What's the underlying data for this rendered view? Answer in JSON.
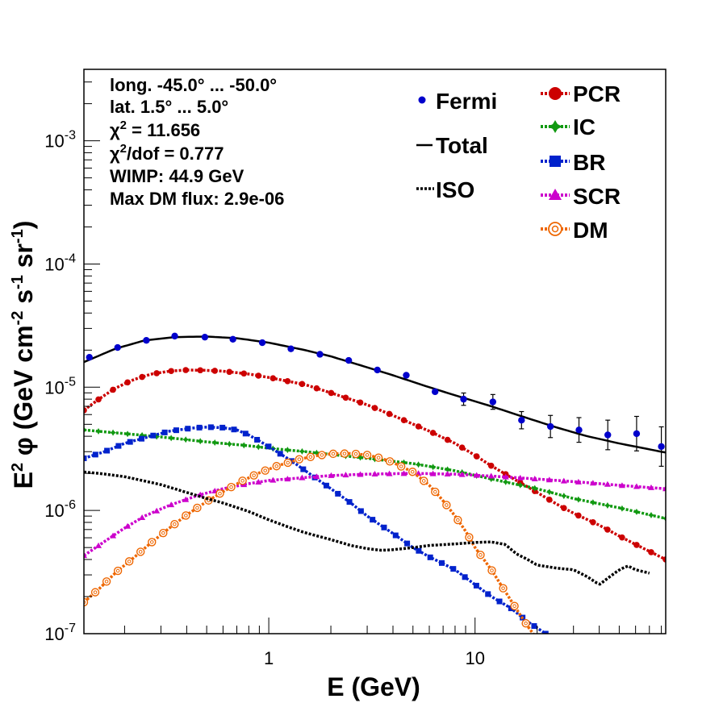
{
  "info": {
    "lines": [
      "long. -45.0° ... -50.0°",
      "lat. 1.5° ... 5.0°"
    ],
    "chi2_label": "χ",
    "chi2_sup": "2",
    "chi2_value": " = 11.656",
    "chi2dof_label": "χ",
    "chi2dof_sup": "2",
    "chi2dof_value": "/dof = 0.777",
    "wimp": "WIMP: 44.9 GeV",
    "maxdm": "Max DM flux: 2.9e-06"
  },
  "legend_left": [
    {
      "key": "fermi",
      "label": "Fermi"
    },
    {
      "key": "total",
      "label": "Total"
    },
    {
      "key": "iso",
      "label": "ISO"
    }
  ],
  "legend_right": [
    {
      "key": "pcr",
      "label": "PCR"
    },
    {
      "key": "ic",
      "label": "IC"
    },
    {
      "key": "br",
      "label": "BR"
    },
    {
      "key": "scr",
      "label": "SCR"
    },
    {
      "key": "dm",
      "label": "DM"
    }
  ],
  "colors": {
    "fermi": "#0000cc",
    "total": "#000000",
    "iso": "#000000",
    "pcr": "#cc0000",
    "ic": "#119911",
    "br": "#0022cc",
    "scr": "#cc00cc",
    "dm": "#ee6600"
  },
  "x_axis": {
    "label": "E (GeV)",
    "ticks": [
      {
        "value": 1,
        "label": "1"
      },
      {
        "value": 10,
        "label": "10"
      }
    ]
  },
  "y_axis": {
    "label_main": "E",
    "label_sup": "2",
    "label_phi": " φ (GeV cm",
    "label_sup2": "-2",
    "label_s": " s",
    "label_sup3": "-1",
    "label_sr": " sr",
    "label_sup4": "-1",
    "label_end": ")",
    "ticks": [
      {
        "value": 1e-07,
        "base": "10",
        "exp": "-7"
      },
      {
        "value": 1e-06,
        "base": "10",
        "exp": "-6"
      },
      {
        "value": 1e-05,
        "base": "10",
        "exp": "-5"
      },
      {
        "value": 0.0001,
        "base": "10",
        "exp": "-4"
      },
      {
        "value": 0.001,
        "base": "10",
        "exp": "-3"
      }
    ]
  },
  "chart_data": {
    "type": "scatter",
    "x_scale": "log",
    "y_scale": "log",
    "xlim": [
      0.127,
      84
    ],
    "ylim": [
      1e-07,
      0.0038
    ],
    "xlabel": "E (GeV)",
    "ylabel": "E² φ (GeV cm⁻² s⁻¹ sr⁻¹)",
    "fermi_points": [
      {
        "x": 0.135,
        "y": 1.75e-05,
        "err": 0
      },
      {
        "x": 0.185,
        "y": 2.1e-05,
        "err": 0
      },
      {
        "x": 0.255,
        "y": 2.4e-05,
        "err": 0
      },
      {
        "x": 0.35,
        "y": 2.6e-05,
        "err": 0
      },
      {
        "x": 0.49,
        "y": 2.55e-05,
        "err": 0
      },
      {
        "x": 0.67,
        "y": 2.45e-05,
        "err": 0
      },
      {
        "x": 0.93,
        "y": 2.3e-05,
        "err": 0
      },
      {
        "x": 1.28,
        "y": 2.05e-05,
        "err": 0
      },
      {
        "x": 1.77,
        "y": 1.85e-05,
        "err": 0
      },
      {
        "x": 2.44,
        "y": 1.65e-05,
        "err": 0
      },
      {
        "x": 3.36,
        "y": 1.38e-05,
        "err": 0
      },
      {
        "x": 4.64,
        "y": 1.25e-05,
        "err": 0
      },
      {
        "x": 6.4,
        "y": 9.2e-06,
        "err": 0
      },
      {
        "x": 8.8,
        "y": 8e-06,
        "err": 0.05
      },
      {
        "x": 12.2,
        "y": 7.6e-06,
        "err": 0.06
      },
      {
        "x": 16.8,
        "y": 5.4e-06,
        "err": 0.07
      },
      {
        "x": 23.2,
        "y": 4.8e-06,
        "err": 0.09
      },
      {
        "x": 31.9,
        "y": 4.5e-06,
        "err": 0.1
      },
      {
        "x": 44.0,
        "y": 4.1e-06,
        "err": 0.12
      },
      {
        "x": 60.7,
        "y": 4.2e-06,
        "err": 0.14
      },
      {
        "x": 80.0,
        "y": 3.3e-06,
        "err": 0.16
      }
    ],
    "series": [
      {
        "key": "total",
        "name": "Total",
        "points": [
          [
            0.127,
            1.6e-05
          ],
          [
            0.18,
            2.05e-05
          ],
          [
            0.25,
            2.4e-05
          ],
          [
            0.35,
            2.55e-05
          ],
          [
            0.5,
            2.58e-05
          ],
          [
            0.7,
            2.5e-05
          ],
          [
            1.0,
            2.3e-05
          ],
          [
            1.5,
            2e-05
          ],
          [
            2.0,
            1.78e-05
          ],
          [
            3.0,
            1.45e-05
          ],
          [
            4.0,
            1.25e-05
          ],
          [
            6.0,
            1e-05
          ],
          [
            8.0,
            8.6e-06
          ],
          [
            12.0,
            7e-06
          ],
          [
            18.0,
            5.6e-06
          ],
          [
            25.0,
            4.7e-06
          ],
          [
            35.0,
            4e-06
          ],
          [
            50.0,
            3.5e-06
          ],
          [
            84.0,
            2.95e-06
          ]
        ]
      },
      {
        "key": "pcr",
        "name": "PCR",
        "points": [
          [
            0.127,
            6.5e-06
          ],
          [
            0.15,
            8e-06
          ],
          [
            0.18,
            9.8e-06
          ],
          [
            0.22,
            1.15e-05
          ],
          [
            0.27,
            1.28e-05
          ],
          [
            0.33,
            1.35e-05
          ],
          [
            0.4,
            1.38e-05
          ],
          [
            0.5,
            1.37e-05
          ],
          [
            0.6,
            1.35e-05
          ],
          [
            0.8,
            1.28e-05
          ],
          [
            1.0,
            1.2e-05
          ],
          [
            1.5,
            1.05e-05
          ],
          [
            2.0,
            9e-06
          ],
          [
            3.0,
            7.2e-06
          ],
          [
            4.0,
            5.9e-06
          ],
          [
            6.0,
            4.4e-06
          ],
          [
            8.0,
            3.5e-06
          ],
          [
            10.0,
            2.8e-06
          ],
          [
            12.0,
            2.3e-06
          ],
          [
            15.0,
            1.85e-06
          ],
          [
            20.0,
            1.4e-06
          ],
          [
            25.0,
            1.12e-06
          ],
          [
            30.0,
            9.5e-07
          ],
          [
            40.0,
            7.6e-07
          ],
          [
            50.0,
            6.2e-07
          ],
          [
            60.0,
            5.3e-07
          ],
          [
            84.0,
            4e-07
          ]
        ]
      },
      {
        "key": "ic",
        "name": "IC",
        "points": [
          [
            0.127,
            4.5e-06
          ],
          [
            0.2,
            4.2e-06
          ],
          [
            0.3,
            3.95e-06
          ],
          [
            0.5,
            3.6e-06
          ],
          [
            0.8,
            3.35e-06
          ],
          [
            1.0,
            3.2e-06
          ],
          [
            1.5,
            3e-06
          ],
          [
            2.0,
            2.85e-06
          ],
          [
            3.0,
            2.65e-06
          ],
          [
            5.0,
            2.4e-06
          ],
          [
            8.0,
            2.1e-06
          ],
          [
            12.0,
            1.8e-06
          ],
          [
            20.0,
            1.5e-06
          ],
          [
            30.0,
            1.25e-06
          ],
          [
            50.0,
            1.05e-06
          ],
          [
            84.0,
            8.6e-07
          ]
        ]
      },
      {
        "key": "br",
        "name": "BR",
        "points": [
          [
            0.127,
            2.65e-06
          ],
          [
            0.16,
            3e-06
          ],
          [
            0.2,
            3.5e-06
          ],
          [
            0.26,
            3.95e-06
          ],
          [
            0.33,
            4.4e-06
          ],
          [
            0.42,
            4.65e-06
          ],
          [
            0.5,
            4.75e-06
          ],
          [
            0.6,
            4.7e-06
          ],
          [
            0.7,
            4.5e-06
          ],
          [
            0.8,
            4.1e-06
          ],
          [
            1.0,
            3.3e-06
          ],
          [
            1.3,
            2.5e-06
          ],
          [
            1.6,
            1.95e-06
          ],
          [
            2.0,
            1.5e-06
          ],
          [
            2.5,
            1.15e-06
          ],
          [
            3.0,
            9e-07
          ],
          [
            4.0,
            6.5e-07
          ],
          [
            5.0,
            5e-07
          ],
          [
            6.0,
            4.2e-07
          ],
          [
            7.0,
            3.7e-07
          ],
          [
            8.0,
            3.3e-07
          ],
          [
            10.0,
            2.5e-07
          ],
          [
            12.0,
            2e-07
          ],
          [
            15.0,
            1.6e-07
          ],
          [
            18.0,
            1.25e-07
          ],
          [
            22.0,
            1e-07
          ]
        ]
      },
      {
        "key": "scr",
        "name": "SCR",
        "points": [
          [
            0.127,
            4.3e-07
          ],
          [
            0.16,
            5.6e-07
          ],
          [
            0.2,
            7.2e-07
          ],
          [
            0.25,
            9e-07
          ],
          [
            0.33,
            1.1e-06
          ],
          [
            0.45,
            1.32e-06
          ],
          [
            0.6,
            1.5e-06
          ],
          [
            0.8,
            1.65e-06
          ],
          [
            1.0,
            1.75e-06
          ],
          [
            1.5,
            1.85e-06
          ],
          [
            2.0,
            1.92e-06
          ],
          [
            3.0,
            1.97e-06
          ],
          [
            5.0,
            2e-06
          ],
          [
            8.0,
            1.97e-06
          ],
          [
            12.0,
            1.9e-06
          ],
          [
            20.0,
            1.8e-06
          ],
          [
            35.0,
            1.68e-06
          ],
          [
            50.0,
            1.6e-06
          ],
          [
            84.0,
            1.5e-06
          ]
        ]
      },
      {
        "key": "dm",
        "name": "DM",
        "points": [
          [
            0.127,
            1.8e-07
          ],
          [
            0.15,
            2.3e-07
          ],
          [
            0.18,
            3.1e-07
          ],
          [
            0.22,
            4.1e-07
          ],
          [
            0.27,
            5.5e-07
          ],
          [
            0.33,
            7.2e-07
          ],
          [
            0.4,
            9.2e-07
          ],
          [
            0.5,
            1.18e-06
          ],
          [
            0.6,
            1.42e-06
          ],
          [
            0.75,
            1.75e-06
          ],
          [
            0.9,
            2.02e-06
          ],
          [
            1.1,
            2.3e-06
          ],
          [
            1.4,
            2.6e-06
          ],
          [
            1.7,
            2.78e-06
          ],
          [
            2.0,
            2.88e-06
          ],
          [
            2.5,
            2.9e-06
          ],
          [
            3.0,
            2.82e-06
          ],
          [
            3.5,
            2.65e-06
          ],
          [
            4.0,
            2.45e-06
          ],
          [
            5.0,
            2.05e-06
          ],
          [
            6.0,
            1.6e-06
          ],
          [
            7.0,
            1.2e-06
          ],
          [
            8.0,
            9e-07
          ],
          [
            9.0,
            6.8e-07
          ],
          [
            10.0,
            5e-07
          ],
          [
            12.0,
            3.3e-07
          ],
          [
            14.0,
            2.2e-07
          ],
          [
            16.0,
            1.55e-07
          ],
          [
            18.0,
            1.15e-07
          ],
          [
            20.0,
            9e-08
          ]
        ]
      },
      {
        "key": "iso",
        "name": "ISO",
        "points": [
          [
            0.127,
            2.05e-06
          ],
          [
            0.15,
            2e-06
          ],
          [
            0.2,
            1.88e-06
          ],
          [
            0.3,
            1.62e-06
          ],
          [
            0.4,
            1.4e-06
          ],
          [
            0.5,
            1.25e-06
          ],
          [
            0.6,
            1.15e-06
          ],
          [
            0.8,
            9.8e-07
          ],
          [
            1.0,
            8.4e-07
          ],
          [
            1.2,
            7.5e-07
          ],
          [
            1.5,
            6.6e-07
          ],
          [
            2.0,
            5.8e-07
          ],
          [
            2.5,
            5.2e-07
          ],
          [
            3.0,
            4.9e-07
          ],
          [
            3.5,
            4.75e-07
          ],
          [
            4.0,
            4.8e-07
          ],
          [
            5.0,
            5e-07
          ],
          [
            6.0,
            5.2e-07
          ],
          [
            8.0,
            5.35e-07
          ],
          [
            10.0,
            5.5e-07
          ],
          [
            12.0,
            5.55e-07
          ],
          [
            14.0,
            5.3e-07
          ],
          [
            16.0,
            4.4e-07
          ],
          [
            18.0,
            4e-07
          ],
          [
            20.0,
            3.6e-07
          ],
          [
            25.0,
            3.4e-07
          ],
          [
            30.0,
            3.3e-07
          ],
          [
            35.0,
            2.9e-07
          ],
          [
            40.0,
            2.5e-07
          ],
          [
            45.0,
            2.9e-07
          ],
          [
            50.0,
            3.3e-07
          ],
          [
            55.0,
            3.55e-07
          ],
          [
            60.0,
            3.3e-07
          ],
          [
            70.0,
            3.1e-07
          ]
        ]
      }
    ]
  }
}
